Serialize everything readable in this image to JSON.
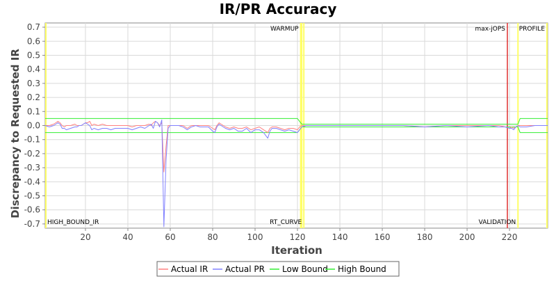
{
  "chart_data": {
    "type": "line",
    "title": "IR/PR Accuracy",
    "xlabel": "Iteration",
    "ylabel": "Discrepancy to Requested IR",
    "xlim": [
      1,
      238
    ],
    "ylim": [
      -0.73,
      0.73
    ],
    "x_ticks": [
      20,
      40,
      60,
      80,
      100,
      120,
      140,
      160,
      180,
      200,
      220
    ],
    "y_ticks": [
      0.7,
      0.6,
      0.5,
      0.4,
      0.3,
      0.2,
      0.1,
      0.0,
      -0.1,
      -0.2,
      -0.3,
      -0.4,
      -0.5,
      -0.6,
      -0.7
    ],
    "grid": true,
    "legend_position": "bottom",
    "colors": {
      "actual_ir": "#ff8080",
      "actual_pr": "#8080ff",
      "low_bound": "#33ee33",
      "high_bound": "#33ee33",
      "phase_marker": "#ffff66",
      "max_jops_marker": "#e03030"
    },
    "phase_markers": [
      {
        "x": 1,
        "label": "HIGH_BOUND_IR",
        "label_pos": "bottom",
        "color": "#ffff66"
      },
      {
        "x": 121.5,
        "label": "WARMUP",
        "label_pos": "top",
        "color": "#ffff66"
      },
      {
        "x": 123,
        "label": "RT_CURVE",
        "label_pos": "bottom",
        "color": "#ffff66"
      },
      {
        "x": 219,
        "label": "max-jOPS",
        "label_pos": "top",
        "color": "#e03030"
      },
      {
        "x": 224,
        "label": "VALIDATION",
        "label_pos": "bottom",
        "color": "#ffff66"
      },
      {
        "x": 238,
        "label": "PROFILE",
        "label_pos": "top",
        "color": "#ffff66"
      }
    ],
    "series": [
      {
        "name": "Actual IR",
        "color": "#ff8080",
        "x": [
          1,
          3,
          5,
          6,
          7,
          8,
          9,
          10,
          11,
          13,
          15,
          16,
          17,
          18,
          19,
          20,
          21,
          22,
          23,
          24,
          26,
          28,
          30,
          32,
          34,
          36,
          38,
          40,
          42,
          44,
          46,
          48,
          50,
          51,
          52,
          53,
          54,
          55,
          56,
          57,
          58,
          59,
          60,
          62,
          64,
          66,
          68,
          70,
          72,
          74,
          76,
          78,
          80,
          81,
          82,
          83,
          84,
          85,
          86,
          88,
          90,
          92,
          94,
          96,
          98,
          100,
          102,
          104,
          106,
          107,
          108,
          110,
          112,
          114,
          116,
          118,
          120,
          121,
          122,
          124,
          130,
          140,
          150,
          160,
          170,
          180,
          190,
          200,
          210,
          215,
          218,
          220,
          221,
          222,
          223,
          224,
          225,
          226,
          228,
          232,
          236,
          238
        ],
        "y": [
          0.0,
          0.0,
          0.01,
          0.02,
          0.03,
          0.02,
          0.0,
          -0.01,
          0.0,
          0.0,
          0.01,
          0.0,
          0.0,
          0.0,
          0.01,
          0.02,
          0.02,
          0.03,
          0.0,
          0.01,
          0.0,
          0.01,
          0.0,
          0.0,
          0.0,
          0.0,
          0.0,
          0.0,
          -0.01,
          0.0,
          0.0,
          0.0,
          0.01,
          0.0,
          0.02,
          0.03,
          0.02,
          0.0,
          0.02,
          -0.33,
          -0.15,
          0.0,
          0.0,
          0.0,
          0.0,
          0.0,
          -0.02,
          0.0,
          0.0,
          0.0,
          0.0,
          0.0,
          -0.02,
          -0.03,
          0.0,
          0.02,
          0.01,
          0.0,
          -0.01,
          -0.02,
          -0.01,
          -0.02,
          -0.02,
          -0.01,
          -0.03,
          -0.02,
          -0.01,
          -0.03,
          -0.05,
          -0.02,
          -0.01,
          -0.01,
          -0.02,
          -0.03,
          -0.02,
          -0.02,
          -0.03,
          -0.01,
          0.0,
          0.0,
          0.0,
          0.0,
          0.0,
          0.0,
          0.0,
          -0.01,
          0.0,
          0.0,
          0.0,
          0.0,
          -0.01,
          -0.02,
          -0.01,
          -0.02,
          -0.01,
          0.0,
          0.0,
          0.0,
          0.0,
          0.0,
          0.0,
          0.0
        ]
      },
      {
        "name": "Actual PR",
        "color": "#8080ff",
        "x": [
          1,
          3,
          5,
          6,
          7,
          8,
          9,
          10,
          11,
          13,
          15,
          16,
          17,
          18,
          19,
          20,
          21,
          22,
          23,
          24,
          26,
          28,
          30,
          32,
          34,
          36,
          38,
          40,
          42,
          44,
          46,
          48,
          50,
          51,
          52,
          53,
          54,
          55,
          56,
          57,
          58,
          59,
          60,
          62,
          64,
          66,
          68,
          70,
          72,
          74,
          76,
          78,
          80,
          81,
          82,
          83,
          84,
          85,
          86,
          88,
          90,
          92,
          94,
          96,
          98,
          100,
          102,
          104,
          106,
          107,
          108,
          110,
          112,
          114,
          116,
          118,
          120,
          121,
          122,
          124,
          130,
          140,
          150,
          160,
          170,
          180,
          190,
          200,
          210,
          215,
          218,
          220,
          221,
          222,
          223,
          224,
          225,
          226,
          228,
          232,
          236,
          238
        ],
        "y": [
          0.0,
          -0.01,
          0.0,
          0.01,
          0.02,
          0.01,
          -0.02,
          -0.02,
          -0.03,
          -0.02,
          -0.01,
          -0.01,
          0.0,
          0.0,
          0.01,
          0.02,
          0.01,
          0.0,
          -0.03,
          -0.02,
          -0.03,
          -0.02,
          -0.02,
          -0.03,
          -0.02,
          -0.02,
          -0.02,
          -0.02,
          -0.03,
          -0.02,
          -0.01,
          -0.02,
          0.0,
          0.01,
          -0.02,
          0.03,
          0.02,
          -0.01,
          0.04,
          -0.72,
          -0.25,
          -0.02,
          0.0,
          0.0,
          0.0,
          -0.01,
          -0.03,
          -0.01,
          0.0,
          -0.01,
          -0.01,
          -0.01,
          -0.04,
          -0.05,
          -0.01,
          0.01,
          0.0,
          -0.01,
          -0.02,
          -0.03,
          -0.02,
          -0.04,
          -0.04,
          -0.02,
          -0.05,
          -0.03,
          -0.03,
          -0.05,
          -0.09,
          -0.04,
          -0.02,
          -0.02,
          -0.03,
          -0.04,
          -0.03,
          -0.04,
          -0.05,
          -0.03,
          -0.01,
          0.0,
          0.0,
          0.0,
          0.0,
          0.0,
          0.0,
          -0.01,
          0.0,
          -0.01,
          0.0,
          -0.01,
          -0.01,
          -0.02,
          -0.02,
          -0.03,
          -0.01,
          0.0,
          -0.01,
          -0.01,
          -0.01,
          0.0,
          0.0,
          0.0
        ]
      },
      {
        "name": "Low Bound",
        "color": "#33ee33",
        "x": [
          1,
          120,
          122,
          224,
          225,
          238
        ],
        "y": [
          -0.05,
          -0.05,
          -0.01,
          -0.01,
          -0.05,
          -0.05
        ]
      },
      {
        "name": "High Bound",
        "color": "#33ee33",
        "x": [
          1,
          120,
          122,
          224,
          225,
          238
        ],
        "y": [
          0.05,
          0.05,
          0.01,
          0.01,
          0.05,
          0.05
        ]
      }
    ]
  }
}
